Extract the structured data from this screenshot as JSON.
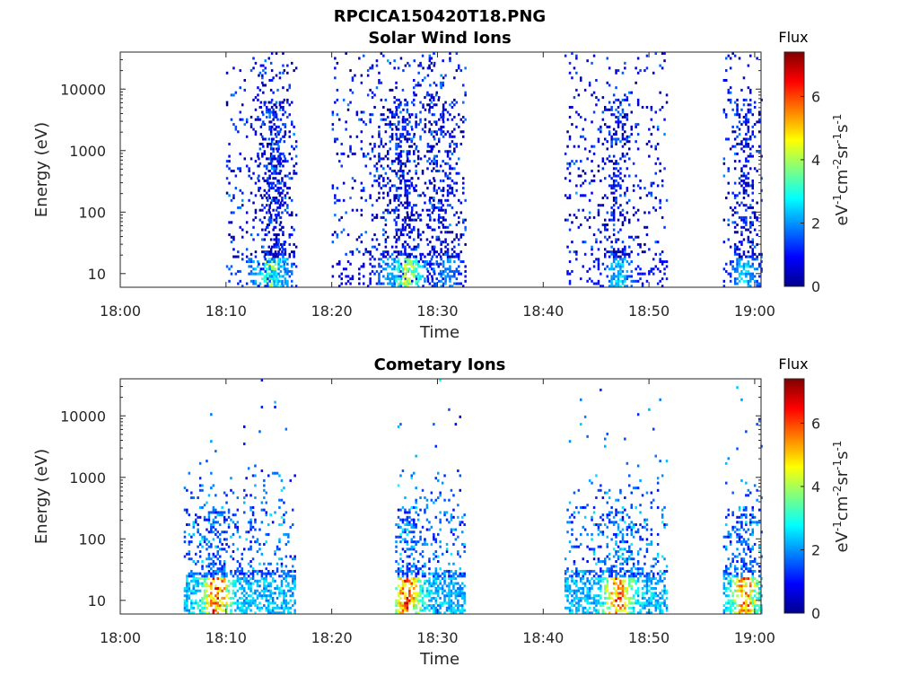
{
  "figure": {
    "title": "RPCICA150420T18.PNG"
  },
  "colorbar": {
    "title": "Flux",
    "label_main": "eV",
    "label_parts": [
      {
        "t": "eV",
        "sup": false
      },
      {
        "t": "-1",
        "sup": true
      },
      {
        "t": "cm",
        "sup": false
      },
      {
        "t": "-2",
        "sup": true
      },
      {
        "t": "sr",
        "sup": false
      },
      {
        "t": "-1",
        "sup": true
      },
      {
        "t": "s",
        "sup": false
      },
      {
        "t": "-1",
        "sup": true
      }
    ],
    "ticks": [
      "0",
      "2",
      "4",
      "6"
    ],
    "range": [
      0,
      7.4
    ],
    "colormap": "jet"
  },
  "chart_data": [
    {
      "type": "heatmap",
      "title": "Solar Wind Ions",
      "xlabel": "Time",
      "ylabel": "Energy (eV)",
      "x_ticks": [
        "18:00",
        "18:10",
        "18:20",
        "18:30",
        "18:40",
        "18:50",
        "19:00"
      ],
      "y_ticks": [
        "10",
        "100",
        "1000",
        "10000"
      ],
      "y_scale": "log",
      "ylim": [
        6,
        40000
      ],
      "xlim_minutes": [
        0,
        60.6
      ],
      "bursts": [
        {
          "start": 18.1,
          "peak": 18.14,
          "end": 18.15,
          "max_flux": 4.5,
          "dense_low_energy": true
        },
        {
          "start": 18.2,
          "end": 18.3,
          "max_flux": 2.5
        },
        {
          "start": 18.13,
          "peak": 18.15,
          "end": 18.16,
          "max_flux": 3.0
        },
        {
          "start": 18.26,
          "peak": 18.27,
          "end": 18.29,
          "max_flux": 5.0
        },
        {
          "start": 18.29,
          "end": 18.32,
          "max_flux": 2.5
        },
        {
          "start": 18.42,
          "peak": 18.47,
          "end": 18.51,
          "max_flux": 3.0
        },
        {
          "start": 18.57,
          "peak": 18.59,
          "end": 19.0,
          "max_flux": 3.0
        }
      ]
    },
    {
      "type": "heatmap",
      "title": "Cometary Ions",
      "xlabel": "Time",
      "ylabel": "Energy (eV)",
      "x_ticks": [
        "18:00",
        "18:10",
        "18:20",
        "18:30",
        "18:40",
        "18:50",
        "19:00"
      ],
      "y_ticks": [
        "10",
        "100",
        "1000",
        "10000"
      ],
      "y_scale": "log",
      "ylim": [
        6,
        40000
      ],
      "xlim_minutes": [
        0,
        60.6
      ],
      "bursts": [
        {
          "start": 18.06,
          "peak": 18.09,
          "end": 18.16,
          "max_flux": 7.0
        },
        {
          "start": 18.26,
          "peak": 18.27,
          "end": 18.32,
          "max_flux": 7.0
        },
        {
          "start": 18.42,
          "peak": 18.47,
          "end": 18.51,
          "max_flux": 7.0
        },
        {
          "start": 18.57,
          "peak": 18.59,
          "end": 19.0,
          "max_flux": 6.5
        }
      ]
    }
  ]
}
